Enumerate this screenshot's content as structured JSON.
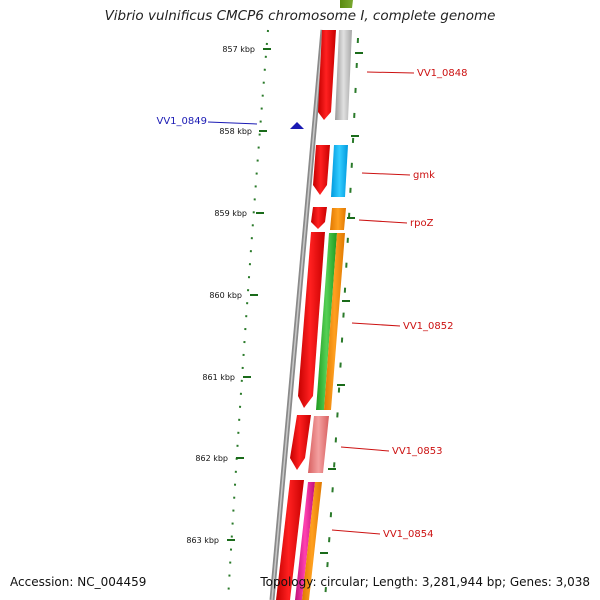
{
  "title": "Vibrio vulnificus CMCP6 chromosome I, complete genome",
  "accession": "Accession: NC_004459",
  "topology": "Topology: circular; Length: 3,281,944 bp; Genes: 3,038",
  "colors": {
    "backbone": "#8a8a8a",
    "tick": "#1a6b1a",
    "label_right": "#cc1111",
    "label_left": "#1a1ab4"
  },
  "scale_labels": [
    "857 kbp",
    "858 kbp",
    "859 kbp",
    "860 kbp",
    "861 kbp",
    "862 kbp",
    "863 kbp"
  ],
  "gene_labels": [
    {
      "text": "VV1_0848",
      "side": "right"
    },
    {
      "text": "VV1_0849",
      "side": "left"
    },
    {
      "text": "gmk",
      "side": "right"
    },
    {
      "text": "rpoZ",
      "side": "right"
    },
    {
      "text": "VV1_0852",
      "side": "right"
    },
    {
      "text": "VV1_0853",
      "side": "right"
    },
    {
      "text": "VV1_0854",
      "side": "right"
    }
  ]
}
